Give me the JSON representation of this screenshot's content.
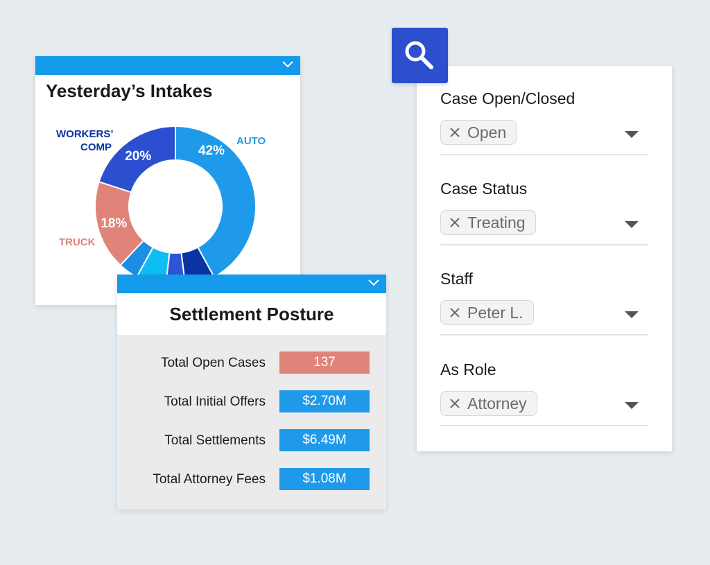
{
  "intakes": {
    "title": "Yesterday’s Intakes",
    "chart_data": {
      "type": "pie",
      "title": "Yesterday’s Intakes",
      "slices": [
        {
          "label": "AUTO",
          "value": 42,
          "color": "#1f9aea"
        },
        {
          "label": "",
          "value": 6,
          "color": "#0a35a0"
        },
        {
          "label": "",
          "value": 4,
          "color": "#2e55d6"
        },
        {
          "label": "",
          "value": 6,
          "color": "#0fbdf5"
        },
        {
          "label": "",
          "value": 4,
          "color": "#1d8ee6"
        },
        {
          "label": "TRUCK",
          "value": 18,
          "color": "#e0847a"
        },
        {
          "label": "WORKERS’ COMP",
          "value": 20,
          "color": "#2b4fcf"
        }
      ],
      "labels": {
        "auto": "AUTO",
        "auto_pct": "42%",
        "truck": "TRUCK",
        "truck_pct": "18%",
        "workers_line1": "WORKERS’",
        "workers_line2": "COMP",
        "workers_pct": "20%"
      },
      "label_colors": {
        "auto": "#1f9aea",
        "truck": "#e0847a",
        "workers": "#0a35a0"
      }
    }
  },
  "settlement": {
    "title": "Settlement Posture",
    "rows": [
      {
        "label": "Total Open Cases",
        "value": "137",
        "color": "#e0847a"
      },
      {
        "label": "Total Initial Offers",
        "value": "$2.70M",
        "color": "#1f9aea"
      },
      {
        "label": "Total Settlements",
        "value": "$6.49M",
        "color": "#1f9aea"
      },
      {
        "label": "Total Attorney Fees",
        "value": "$1.08M",
        "color": "#1f9aea"
      }
    ]
  },
  "search": {
    "icon": "search-icon",
    "color": "#2b4fcf"
  },
  "filters": [
    {
      "label": "Case Open/Closed",
      "chip": "Open"
    },
    {
      "label": "Case Status",
      "chip": "Treating"
    },
    {
      "label": "Staff",
      "chip": "Peter L."
    },
    {
      "label": "As Role",
      "chip": "Attorney"
    }
  ]
}
